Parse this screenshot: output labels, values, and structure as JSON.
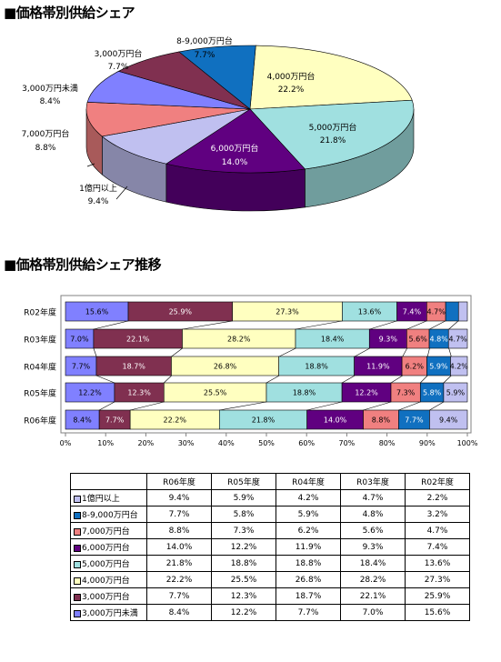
{
  "titles": {
    "pie": "■価格帯別供給シェア",
    "bar": "■価格帯別供給シェア推移"
  },
  "colors": {
    "1億円以上": "#c0c0f0",
    "8-9,000万円台": "#1070c0",
    "7,000万円台": "#f08080",
    "6,000万円台": "#600080",
    "5,000万円台": "#a0e0e0",
    "4,000万円台": "#ffffc0",
    "3,000万円台": "#803050",
    "3,000万円未満": "#8080ff"
  },
  "chart_data": [
    {
      "type": "pie",
      "title": "■価格帯別供給シェア",
      "slices": [
        {
          "label": "4,000万円台",
          "value": 22.2,
          "value_label": "22.2%"
        },
        {
          "label": "5,000万円台",
          "value": 21.8,
          "value_label": "21.8%"
        },
        {
          "label": "6,000万円台",
          "value": 14.0,
          "value_label": "14.0%"
        },
        {
          "label": "1億円以上",
          "value": 9.4,
          "value_label": "9.4%"
        },
        {
          "label": "7,000万円台",
          "value": 8.8,
          "value_label": "8.8%"
        },
        {
          "label": "3,000万円未満",
          "value": 8.4,
          "value_label": "8.4%"
        },
        {
          "label": "3,000万円台",
          "value": 7.7,
          "value_label": "7.7%"
        },
        {
          "label": "8-9,000万円台",
          "value": 7.7,
          "value_label": "7.7%"
        }
      ]
    },
    {
      "type": "bar",
      "orientation": "horizontal",
      "stacked": "100%",
      "title": "■価格帯別供給シェア推移",
      "categories": [
        "R02年度",
        "R03年度",
        "R04年度",
        "R05年度",
        "R06年度"
      ],
      "series": [
        {
          "name": "3,000万円未満",
          "values": [
            15.6,
            7.0,
            7.7,
            12.2,
            8.4
          ],
          "labels": [
            "15.6%",
            "7.0%",
            "7.7%",
            "12.2%",
            "8.4%"
          ]
        },
        {
          "name": "3,000万円台",
          "values": [
            25.9,
            22.1,
            18.7,
            12.3,
            7.7
          ],
          "labels": [
            "25.9%",
            "22.1%",
            "18.7%",
            "12.3%",
            "7.7%"
          ]
        },
        {
          "name": "4,000万円台",
          "values": [
            27.3,
            28.2,
            26.8,
            25.5,
            22.2
          ],
          "labels": [
            "27.3%",
            "28.2%",
            "26.8%",
            "25.5%",
            "22.2%"
          ]
        },
        {
          "name": "5,000万円台",
          "values": [
            13.6,
            18.4,
            18.8,
            18.8,
            21.8
          ],
          "labels": [
            "13.6%",
            "18.4%",
            "18.8%",
            "18.8%",
            "21.8%"
          ]
        },
        {
          "name": "6,000万円台",
          "values": [
            7.4,
            9.3,
            11.9,
            12.2,
            14.0
          ],
          "labels": [
            "7.4%",
            "9.3%",
            "11.9%",
            "12.2%",
            "14.0%"
          ]
        },
        {
          "name": "7,000万円台",
          "values": [
            4.7,
            5.6,
            6.2,
            7.3,
            8.8
          ],
          "labels": [
            "4.7%",
            "5.6%",
            "6.2%",
            "7.3%",
            "8.8%"
          ]
        },
        {
          "name": "8-9,000万円台",
          "values": [
            3.2,
            4.8,
            5.9,
            5.8,
            7.7
          ],
          "labels": [
            "",
            "4.8%",
            "5.9%",
            "5.8%",
            "7.7%"
          ]
        },
        {
          "name": "1億円以上",
          "values": [
            2.2,
            4.7,
            4.2,
            5.9,
            9.4
          ],
          "labels": [
            "",
            "4.7%",
            "4.2%",
            "5.9%",
            "9.4%"
          ]
        }
      ],
      "xticks": [
        "0%",
        "10%",
        "20%",
        "30%",
        "40%",
        "50%",
        "60%",
        "70%",
        "80%",
        "90%",
        "100%"
      ],
      "xlim": [
        0,
        100
      ]
    }
  ],
  "table": {
    "columns": [
      "R06年度",
      "R05年度",
      "R04年度",
      "R03年度",
      "R02年度"
    ],
    "rows": [
      {
        "label": "1億円以上",
        "values": [
          "9.4%",
          "5.9%",
          "4.2%",
          "4.7%",
          "2.2%"
        ]
      },
      {
        "label": "8-9,000万円台",
        "values": [
          "7.7%",
          "5.8%",
          "5.9%",
          "4.8%",
          "3.2%"
        ]
      },
      {
        "label": "7,000万円台",
        "values": [
          "8.8%",
          "7.3%",
          "6.2%",
          "5.6%",
          "4.7%"
        ]
      },
      {
        "label": "6,000万円台",
        "values": [
          "14.0%",
          "12.2%",
          "11.9%",
          "9.3%",
          "7.4%"
        ]
      },
      {
        "label": "5,000万円台",
        "values": [
          "21.8%",
          "18.8%",
          "18.8%",
          "18.4%",
          "13.6%"
        ]
      },
      {
        "label": "4,000万円台",
        "values": [
          "22.2%",
          "25.5%",
          "26.8%",
          "28.2%",
          "27.3%"
        ]
      },
      {
        "label": "3,000万円台",
        "values": [
          "7.7%",
          "12.3%",
          "18.7%",
          "22.1%",
          "25.9%"
        ]
      },
      {
        "label": "3,000万円未満",
        "values": [
          "8.4%",
          "12.2%",
          "7.7%",
          "7.0%",
          "15.6%"
        ]
      }
    ]
  }
}
